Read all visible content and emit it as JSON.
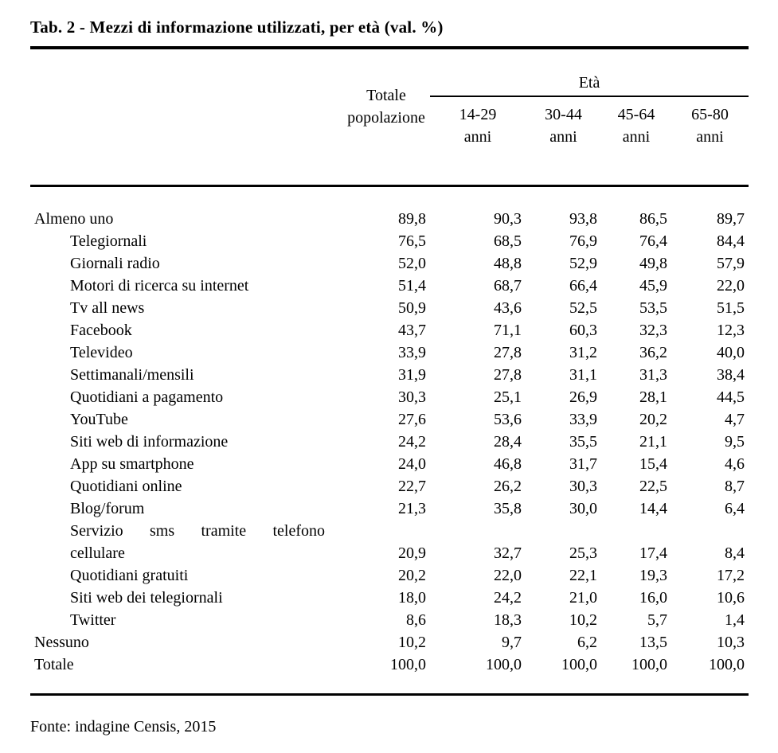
{
  "title": "Tab. 2 - Mezzi di informazione utilizzati, per età (val. %)",
  "table": {
    "group_header": "Età",
    "headers": {
      "total": "Totale\npopolazione",
      "ages": [
        "14-29\nanni",
        "30-44\nanni",
        "45-64\nanni",
        "65-80\nanni"
      ]
    },
    "rows": [
      {
        "label": "Almeno uno",
        "indent": false,
        "values": [
          "89,8",
          "90,3",
          "93,8",
          "86,5",
          "89,7"
        ]
      },
      {
        "label": "Telegiornali",
        "indent": true,
        "values": [
          "76,5",
          "68,5",
          "76,9",
          "76,4",
          "84,4"
        ]
      },
      {
        "label": "Giornali radio",
        "indent": true,
        "values": [
          "52,0",
          "48,8",
          "52,9",
          "49,8",
          "57,9"
        ]
      },
      {
        "label": "Motori di ricerca su internet",
        "indent": true,
        "values": [
          "51,4",
          "68,7",
          "66,4",
          "45,9",
          "22,0"
        ]
      },
      {
        "label": "Tv all news",
        "indent": true,
        "values": [
          "50,9",
          "43,6",
          "52,5",
          "53,5",
          "51,5"
        ]
      },
      {
        "label": "Facebook",
        "indent": true,
        "values": [
          "43,7",
          "71,1",
          "60,3",
          "32,3",
          "12,3"
        ]
      },
      {
        "label": "Televideo",
        "indent": true,
        "values": [
          "33,9",
          "27,8",
          "31,2",
          "36,2",
          "40,0"
        ]
      },
      {
        "label": "Settimanali/mensili",
        "indent": true,
        "values": [
          "31,9",
          "27,8",
          "31,1",
          "31,3",
          "38,4"
        ]
      },
      {
        "label": "Quotidiani a pagamento",
        "indent": true,
        "values": [
          "30,3",
          "25,1",
          "26,9",
          "28,1",
          "44,5"
        ]
      },
      {
        "label": "YouTube",
        "indent": true,
        "values": [
          "27,6",
          "53,6",
          "33,9",
          "20,2",
          "4,7"
        ]
      },
      {
        "label": "Siti web di informazione",
        "indent": true,
        "values": [
          "24,2",
          "28,4",
          "35,5",
          "21,1",
          "9,5"
        ]
      },
      {
        "label": "App su smartphone",
        "indent": true,
        "values": [
          "24,0",
          "46,8",
          "31,7",
          "15,4",
          "4,6"
        ]
      },
      {
        "label": "Quotidiani online",
        "indent": true,
        "values": [
          "22,7",
          "26,2",
          "30,3",
          "22,5",
          "8,7"
        ]
      },
      {
        "label": "Blog/forum",
        "indent": true,
        "values": [
          "21,3",
          "35,8",
          "30,0",
          "14,4",
          "6,4"
        ]
      },
      {
        "label": "Servizio sms tramite telefono",
        "label2": "cellulare",
        "indent": true,
        "values": [
          "20,9",
          "32,7",
          "25,3",
          "17,4",
          "8,4"
        ]
      },
      {
        "label": "Quotidiani gratuiti",
        "indent": true,
        "values": [
          "20,2",
          "22,0",
          "22,1",
          "19,3",
          "17,2"
        ]
      },
      {
        "label": "Siti web dei telegiornali",
        "indent": true,
        "values": [
          "18,0",
          "24,2",
          "21,0",
          "16,0",
          "10,6"
        ]
      },
      {
        "label": "Twitter",
        "indent": true,
        "values": [
          "8,6",
          "18,3",
          "10,2",
          "5,7",
          "1,4"
        ]
      },
      {
        "label": "Nessuno",
        "indent": false,
        "values": [
          "10,2",
          "9,7",
          "6,2",
          "13,5",
          "10,3"
        ]
      },
      {
        "label": "Totale",
        "indent": false,
        "values": [
          "100,0",
          "100,0",
          "100,0",
          "100,0",
          "100,0"
        ]
      }
    ]
  },
  "source": "Fonte: indagine Censis, 2015"
}
